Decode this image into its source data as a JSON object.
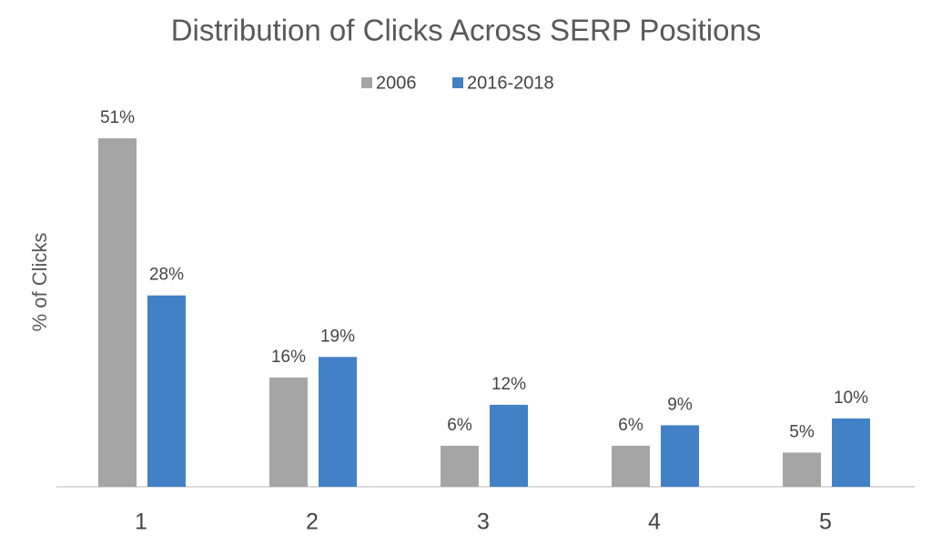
{
  "chart_data": {
    "type": "bar",
    "title": "Distribution of Clicks Across SERP Positions",
    "y_label": "% of Clicks",
    "categories": [
      "1",
      "2",
      "3",
      "4",
      "5"
    ],
    "series": [
      {
        "name": "2006",
        "color": "#a5a5a5",
        "values": [
          51,
          16,
          6,
          6,
          5
        ],
        "value_labels": [
          "51%",
          "16%",
          "6%",
          "6%",
          "5%"
        ]
      },
      {
        "name": "2016-2018",
        "color": "#4281c5",
        "values": [
          28,
          19,
          12,
          9,
          10
        ],
        "value_labels": [
          "28%",
          "19%",
          "12%",
          "9%",
          "10%"
        ]
      }
    ],
    "legend": "top",
    "grid": false
  }
}
